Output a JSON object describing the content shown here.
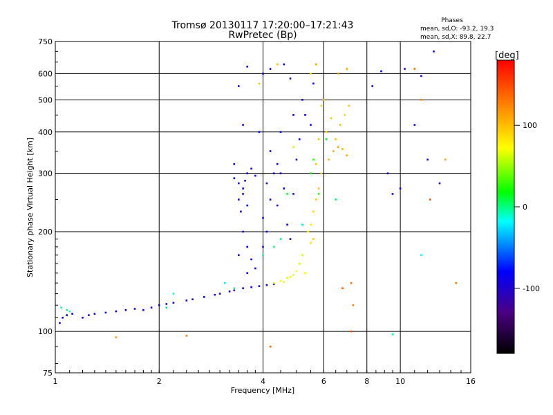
{
  "chart_data": {
    "type": "scatter",
    "title": "Tromsø 20130117 17:20:00–17:21:43",
    "subtitle": "RwPretec (Bp)",
    "xlabel": "Frequency [MHz]",
    "ylabel": "Stationary phase Virtual Height [km]",
    "x_scale": "log2",
    "y_scale": "log",
    "xlim": [
      1,
      16
    ],
    "ylim": [
      75,
      750
    ],
    "x_ticks": [
      1,
      2,
      4,
      6,
      8,
      10,
      16
    ],
    "x_tick_labels": [
      "1",
      "2",
      "4",
      "6",
      "8",
      "10",
      "16"
    ],
    "y_ticks": [
      75,
      100,
      200,
      300,
      400,
      500,
      600,
      750
    ],
    "y_tick_labels": [
      "75",
      "100",
      "200",
      "300",
      "400",
      "500",
      "600",
      "750"
    ],
    "grid": true,
    "colorbar": {
      "label": "[deg]",
      "range": [
        -180,
        180
      ],
      "ticks": [
        100,
        0,
        -100
      ],
      "tick_labels": [
        "100",
        "0",
        "-100"
      ],
      "colors": [
        "#000000",
        "#4b0082",
        "#0000ff",
        "#00ffff",
        "#00ff00",
        "#ffff00",
        "#ff8000",
        "#ff0000"
      ]
    },
    "phase_stats": {
      "heading": "Phases",
      "o_line": "mean, sd,O: -93.2, 19.3",
      "x_line": "mean, sd,X:  89.8, 22.7"
    },
    "series": [
      {
        "points": [
          [
            1.03,
            106,
            -110
          ],
          [
            1.05,
            110,
            -105
          ],
          [
            1.08,
            112,
            -100
          ],
          [
            1.12,
            113,
            -110
          ],
          [
            1.2,
            110,
            -115
          ],
          [
            1.25,
            112,
            -108
          ],
          [
            1.3,
            113,
            -112
          ],
          [
            1.4,
            114,
            -105
          ],
          [
            1.5,
            115,
            -110
          ],
          [
            1.6,
            116,
            -108
          ],
          [
            1.7,
            117,
            -112
          ],
          [
            1.8,
            116,
            -106
          ],
          [
            1.9,
            118,
            -110
          ],
          [
            2.0,
            120,
            -104
          ],
          [
            2.1,
            121,
            -108
          ],
          [
            2.2,
            122,
            -112
          ],
          [
            2.4,
            124,
            -106
          ],
          [
            2.5,
            125,
            -110
          ],
          [
            2.7,
            127,
            -100
          ],
          [
            2.9,
            129,
            -104
          ],
          [
            3.0,
            130,
            -108
          ],
          [
            3.2,
            132,
            -120
          ],
          [
            3.3,
            133,
            -125
          ],
          [
            3.5,
            135,
            -115
          ],
          [
            3.7,
            136,
            -110
          ],
          [
            3.9,
            137,
            -106
          ],
          [
            4.1,
            138,
            -108
          ],
          [
            4.3,
            139,
            -112
          ],
          [
            3.3,
            290,
            -105
          ],
          [
            3.4,
            280,
            -110
          ],
          [
            3.5,
            270,
            -100
          ],
          [
            3.6,
            300,
            -108
          ],
          [
            3.5,
            260,
            -115
          ],
          [
            3.4,
            250,
            -104
          ],
          [
            3.7,
            310,
            -112
          ],
          [
            3.6,
            240,
            -106
          ],
          [
            3.3,
            320,
            -102
          ],
          [
            3.8,
            295,
            -110
          ],
          [
            3.45,
            230,
            -108
          ],
          [
            3.55,
            285,
            -104
          ],
          [
            3.5,
            200,
            -110
          ],
          [
            3.6,
            180,
            -105
          ],
          [
            3.7,
            165,
            -100
          ],
          [
            3.4,
            170,
            -112
          ],
          [
            3.8,
            155,
            -108
          ],
          [
            3.6,
            150,
            -104
          ],
          [
            4.0,
            180,
            -110
          ],
          [
            4.1,
            200,
            -106
          ],
          [
            4.0,
            220,
            -104
          ],
          [
            4.2,
            250,
            -108
          ],
          [
            4.1,
            280,
            -112
          ],
          [
            4.3,
            300,
            -102
          ],
          [
            4.4,
            320,
            -110
          ],
          [
            4.2,
            350,
            -104
          ],
          [
            4.5,
            300,
            -108
          ],
          [
            4.6,
            270,
            -100
          ],
          [
            4.4,
            240,
            -110
          ],
          [
            4.7,
            210,
            -106
          ],
          [
            4.8,
            190,
            -112
          ],
          [
            4.9,
            260,
            -104
          ],
          [
            5.0,
            330,
            -108
          ],
          [
            5.1,
            380,
            -110
          ],
          [
            4.5,
            400,
            -102
          ],
          [
            4.9,
            450,
            -108
          ],
          [
            5.2,
            500,
            -104
          ],
          [
            5.3,
            450,
            -110
          ],
          [
            4.0,
            600,
            -106
          ],
          [
            4.2,
            620,
            -108
          ],
          [
            3.6,
            630,
            -100
          ],
          [
            4.6,
            640,
            -104
          ],
          [
            3.4,
            550,
            -110
          ],
          [
            4.8,
            580,
            -112
          ],
          [
            5.5,
            420,
            -104
          ],
          [
            5.6,
            560,
            -108
          ],
          [
            3.5,
            420,
            -106
          ],
          [
            3.9,
            400,
            -102
          ],
          [
            12.0,
            330,
            -110
          ],
          [
            13.0,
            280,
            -120
          ],
          [
            11.5,
            590,
            -112
          ],
          [
            12.5,
            700,
            -104
          ],
          [
            10.0,
            270,
            -108
          ],
          [
            9.5,
            260,
            -102
          ],
          [
            10.3,
            620,
            -110
          ],
          [
            8.8,
            610,
            -106
          ],
          [
            11.0,
            420,
            -104
          ],
          [
            9.2,
            300,
            -110
          ],
          [
            8.3,
            550,
            -108
          ]
        ]
      },
      {
        "points": [
          [
            4.3,
            140,
            60
          ],
          [
            4.5,
            142,
            65
          ],
          [
            4.7,
            145,
            58
          ],
          [
            4.9,
            148,
            62
          ],
          [
            5.0,
            152,
            68
          ],
          [
            5.1,
            160,
            55
          ],
          [
            5.2,
            170,
            60
          ],
          [
            5.3,
            150,
            70
          ],
          [
            4.6,
            141,
            75
          ],
          [
            4.8,
            146,
            66
          ],
          [
            5.4,
            200,
            72
          ],
          [
            5.5,
            210,
            80
          ],
          [
            5.6,
            230,
            85
          ],
          [
            5.7,
            250,
            90
          ],
          [
            5.6,
            190,
            95
          ],
          [
            5.5,
            185,
            88
          ],
          [
            5.8,
            270,
            100
          ],
          [
            5.9,
            300,
            92
          ],
          [
            5.7,
            320,
            98
          ],
          [
            6.2,
            330,
            105
          ],
          [
            6.4,
            350,
            110
          ],
          [
            6.6,
            360,
            115
          ],
          [
            6.8,
            355,
            108
          ],
          [
            7.0,
            340,
            112
          ],
          [
            6.5,
            380,
            100
          ],
          [
            6.7,
            420,
            104
          ],
          [
            6.3,
            440,
            96
          ],
          [
            6.9,
            450,
            90
          ],
          [
            7.1,
            480,
            100
          ],
          [
            6.1,
            400,
            94
          ],
          [
            5.5,
            600,
            85
          ],
          [
            5.7,
            640,
            110
          ],
          [
            6.6,
            600,
            120
          ],
          [
            7.0,
            620,
            115
          ],
          [
            4.4,
            640,
            105
          ],
          [
            3.9,
            560,
            95
          ],
          [
            5.9,
            480,
            90
          ],
          [
            5.8,
            380,
            100
          ],
          [
            6.0,
            500,
            108
          ],
          [
            4.9,
            360,
            85
          ],
          [
            4.2,
            90,
            140
          ],
          [
            1.5,
            96,
            120
          ],
          [
            2.4,
            97,
            130
          ],
          [
            7.2,
            100,
            150
          ],
          [
            7.3,
            120,
            130
          ],
          [
            7.2,
            140,
            135
          ],
          [
            6.8,
            135,
            145
          ],
          [
            11.0,
            620,
            140
          ],
          [
            11.5,
            500,
            125
          ],
          [
            12.2,
            250,
            150
          ],
          [
            14.5,
            140,
            130
          ],
          [
            13.5,
            330,
            118
          ]
        ]
      },
      {
        "points": [
          [
            1.04,
            118,
            -30
          ],
          [
            1.08,
            116,
            -20
          ],
          [
            1.1,
            115,
            -40
          ],
          [
            2.1,
            118,
            -50
          ],
          [
            2.2,
            130,
            -35
          ],
          [
            3.3,
            135,
            -25
          ],
          [
            3.1,
            140,
            -45
          ],
          [
            4.0,
            170,
            -30
          ],
          [
            4.3,
            180,
            -15
          ],
          [
            4.5,
            190,
            -20
          ],
          [
            4.7,
            260,
            -10
          ],
          [
            5.2,
            210,
            -25
          ],
          [
            5.5,
            300,
            0
          ],
          [
            5.6,
            330,
            10
          ],
          [
            6.1,
            380,
            -5
          ],
          [
            5.8,
            260,
            5
          ],
          [
            6.5,
            250,
            -15
          ],
          [
            11.5,
            170,
            -40
          ],
          [
            9.5,
            98,
            -30
          ]
        ]
      }
    ]
  }
}
